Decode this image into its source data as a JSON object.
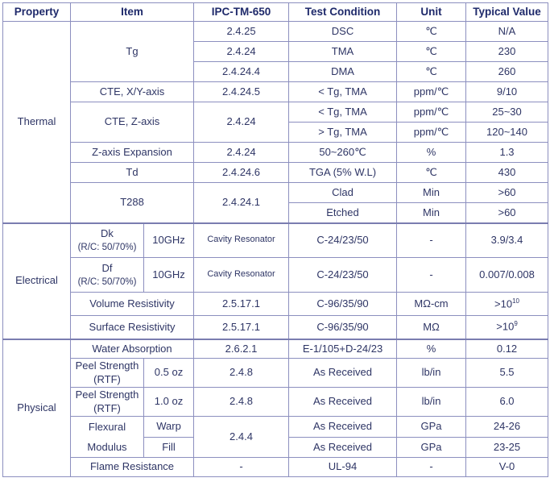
{
  "headers": {
    "property": "Property",
    "item": "Item",
    "ipc": "IPC-TM-650",
    "condition": "Test Condition",
    "unit": "Unit",
    "value": "Typical Value"
  },
  "thermal": {
    "group": "Thermal",
    "tg": {
      "item": "Tg",
      "rows": [
        {
          "ipc": "2.4.25",
          "cond": "DSC",
          "unit": "℃",
          "value": "N/A"
        },
        {
          "ipc": "2.4.24",
          "cond": "TMA",
          "unit": "℃",
          "value": "230"
        },
        {
          "ipc": "2.4.24.4",
          "cond": "DMA",
          "unit": "℃",
          "value": "260"
        }
      ]
    },
    "cte_xy": {
      "item": "CTE, X/Y-axis",
      "ipc": "2.4.24.5",
      "cond": "< Tg, TMA",
      "unit": "ppm/℃",
      "value": "9/10"
    },
    "cte_z": {
      "item": "CTE, Z-axis",
      "ipc": "2.4.24",
      "rows": [
        {
          "cond": "< Tg, TMA",
          "unit": "ppm/℃",
          "value": "25~30"
        },
        {
          "cond": "> Tg, TMA",
          "unit": "ppm/℃",
          "value": "120~140"
        }
      ]
    },
    "z_exp": {
      "item": "Z-axis Expansion",
      "ipc": "2.4.24",
      "cond": "50~260℃",
      "unit": "%",
      "value": "1.3"
    },
    "td": {
      "item": "Td",
      "ipc": "2.4.24.6",
      "cond": "TGA (5% W.L)",
      "unit": "℃",
      "value": "430"
    },
    "t288": {
      "item": "T288",
      "ipc": "2.4.24.1",
      "rows": [
        {
          "cond": "Clad",
          "unit": "Min",
          "value": ">60"
        },
        {
          "cond": "Etched",
          "unit": "Min",
          "value": ">60"
        }
      ]
    }
  },
  "electrical": {
    "group": "Electrical",
    "dk": {
      "item": "Dk",
      "note": "(R/C: 50/70%)",
      "freq": "10GHz",
      "ipc": "Cavity Resonator",
      "cond": "C-24/23/50",
      "unit": "-",
      "value": "3.9/3.4"
    },
    "df": {
      "item": "Df",
      "note": "(R/C: 50/70%)",
      "freq": "10GHz",
      "ipc": "Cavity Resonator",
      "cond": "C-24/23/50",
      "unit": "-",
      "value": "0.007/0.008"
    },
    "vol": {
      "item": "Volume Resistivity",
      "ipc": "2.5.17.1",
      "cond": "C-96/35/90",
      "unit": "MΩ-cm",
      "value_base": ">10",
      "value_exp": "10"
    },
    "surf": {
      "item": "Surface Resistivity",
      "ipc": "2.5.17.1",
      "cond": "C-96/35/90",
      "unit": "MΩ",
      "value_base": ">10",
      "value_exp": "9"
    }
  },
  "physical": {
    "group": "Physical",
    "water": {
      "item": "Water Absorption",
      "ipc": "2.6.2.1",
      "cond": "E-1/105+D-24/23",
      "unit": "%",
      "value": "0.12"
    },
    "peel1": {
      "item": "Peel Strength (RTF)",
      "sub": "0.5 oz",
      "ipc": "2.4.8",
      "cond": "As Received",
      "unit": "lb/in",
      "value": "5.5"
    },
    "peel2": {
      "item": "Peel Strength (RTF)",
      "sub": "1.0 oz",
      "ipc": "2.4.8",
      "cond": "As Received",
      "unit": "lb/in",
      "value": "6.0"
    },
    "flex": {
      "item1": "Flexural",
      "item2": "Modulus",
      "ipc": "2.4.4",
      "rows": [
        {
          "sub": "Warp",
          "cond": "As Received",
          "unit": "GPa",
          "value": "24-26"
        },
        {
          "sub": "Fill",
          "cond": "As Received",
          "unit": "GPa",
          "value": "23-25"
        }
      ]
    },
    "flame": {
      "item": "Flame Resistance",
      "ipc": "-",
      "cond": "UL-94",
      "unit": "-",
      "value": "V-0"
    }
  }
}
